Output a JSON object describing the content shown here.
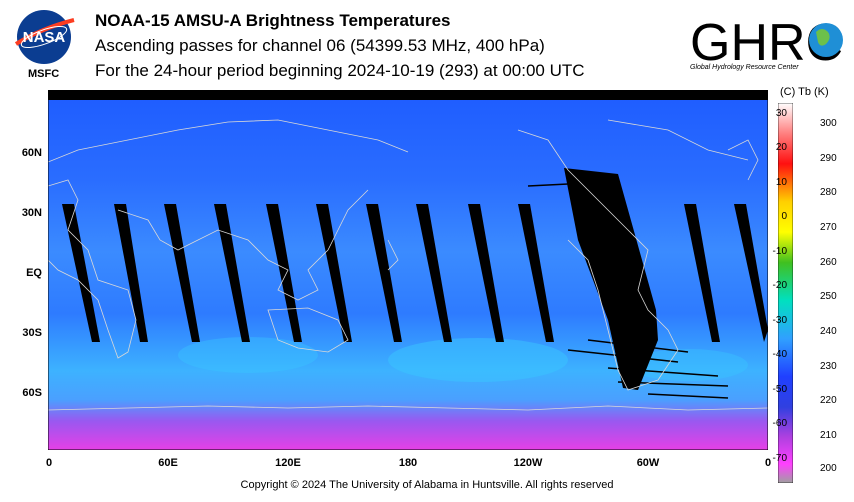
{
  "header": {
    "title": "NOAA-15 AMSU-A Brightness Temperatures",
    "subtitle": "Ascending passes for channel 06 (54399.53 MHz, 400 hPa)",
    "period": "For the 24-hour period beginning 2024-10-19 (293) at 00:00 UTC"
  },
  "logos": {
    "nasa_text": "NASA",
    "msfc": "MSFC",
    "ghrc_text": "GHRC",
    "ghrc_sub": "Global Hydrology Resource Center"
  },
  "map": {
    "lat_labels": [
      "60N",
      "30N",
      "EQ",
      "30S",
      "60S"
    ],
    "lon_labels": [
      "0",
      "60E",
      "120E",
      "180",
      "120W",
      "60W",
      "0"
    ],
    "arrow": "←",
    "colors": {
      "ocean_warm": "#3a7cff",
      "ocean_cool": "#1e3cff",
      "cyan": "#39b7ff",
      "magenta": "#e640e6",
      "gap": "#000000",
      "coast": "#d8d8d8"
    }
  },
  "colorbar": {
    "header": "(C)  Tb  (K)",
    "celsius": [
      "30",
      "20",
      "10",
      "0",
      "-10",
      "-20",
      "-30",
      "-40",
      "-50",
      "-60",
      "-70"
    ],
    "kelvin": [
      "300",
      "290",
      "280",
      "270",
      "260",
      "250",
      "240",
      "230",
      "220",
      "210",
      "200"
    ]
  },
  "footer": {
    "copyright": "Copyright © 2024 The University of Alabama in Huntsville.  All rights reserved"
  }
}
